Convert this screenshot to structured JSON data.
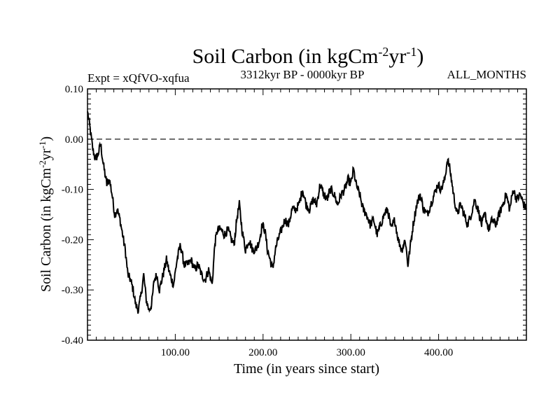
{
  "chart_data": {
    "type": "line",
    "title": {
      "main": "Soil Carbon (in kgCm",
      "exp1": "-2",
      "mid": "yr",
      "exp2": "-1",
      "end": ")"
    },
    "subtitle_left": "Expt = xQfVO-xqfua",
    "subtitle_center": "3312kyr BP - 0000kyr BP",
    "subtitle_right": "ALL_MONTHS",
    "xlabel": "Time (in years since start)",
    "ylabel": {
      "main": "Soil Carbon (in kgCm",
      "exp1": "-2",
      "mid": "yr",
      "exp2": "-1",
      "end": ")"
    },
    "xlim": [
      0,
      500
    ],
    "ylim": [
      -0.4,
      0.1
    ],
    "xticks": [
      100,
      200,
      300,
      400
    ],
    "xtick_labels": [
      "100.00",
      "200.00",
      "300.00",
      "400.00"
    ],
    "yticks": [
      0.1,
      0.0,
      -0.1,
      -0.2,
      -0.3,
      -0.4
    ],
    "ytick_labels": [
      "0.10",
      "0.00",
      "-0.10",
      "-0.20",
      "-0.30",
      "-0.40"
    ],
    "reference_line": {
      "y": 0.0,
      "style": "dashed"
    },
    "series": [
      {
        "name": "Soil Carbon",
        "color": "#000000",
        "points": [
          [
            0,
            0.055
          ],
          [
            3,
            0.02
          ],
          [
            6,
            -0.02
          ],
          [
            9,
            -0.04
          ],
          [
            12,
            -0.03
          ],
          [
            15,
            -0.01
          ],
          [
            18,
            -0.05
          ],
          [
            22,
            -0.09
          ],
          [
            25,
            -0.08
          ],
          [
            28,
            -0.11
          ],
          [
            31,
            -0.15
          ],
          [
            34,
            -0.14
          ],
          [
            37,
            -0.16
          ],
          [
            40,
            -0.19
          ],
          [
            43,
            -0.22
          ],
          [
            46,
            -0.27
          ],
          [
            49,
            -0.28
          ],
          [
            52,
            -0.3
          ],
          [
            55,
            -0.33
          ],
          [
            58,
            -0.34
          ],
          [
            61,
            -0.31
          ],
          [
            64,
            -0.27
          ],
          [
            67,
            -0.32
          ],
          [
            70,
            -0.34
          ],
          [
            73,
            -0.33
          ],
          [
            76,
            -0.28
          ],
          [
            79,
            -0.27
          ],
          [
            82,
            -0.3
          ],
          [
            86,
            -0.27
          ],
          [
            90,
            -0.24
          ],
          [
            94,
            -0.27
          ],
          [
            98,
            -0.29
          ],
          [
            102,
            -0.24
          ],
          [
            106,
            -0.21
          ],
          [
            110,
            -0.25
          ],
          [
            114,
            -0.25
          ],
          [
            118,
            -0.24
          ],
          [
            122,
            -0.26
          ],
          [
            126,
            -0.25
          ],
          [
            130,
            -0.27
          ],
          [
            134,
            -0.28
          ],
          [
            138,
            -0.26
          ],
          [
            142,
            -0.29
          ],
          [
            145,
            -0.21
          ],
          [
            148,
            -0.18
          ],
          [
            152,
            -0.18
          ],
          [
            156,
            -0.19
          ],
          [
            160,
            -0.18
          ],
          [
            164,
            -0.2
          ],
          [
            167,
            -0.21
          ],
          [
            170,
            -0.16
          ],
          [
            173,
            -0.13
          ],
          [
            176,
            -0.18
          ],
          [
            180,
            -0.22
          ],
          [
            184,
            -0.2
          ],
          [
            188,
            -0.22
          ],
          [
            192,
            -0.22
          ],
          [
            196,
            -0.2
          ],
          [
            199,
            -0.17
          ],
          [
            202,
            -0.18
          ],
          [
            205,
            -0.22
          ],
          [
            208,
            -0.24
          ],
          [
            211,
            -0.26
          ],
          [
            214,
            -0.22
          ],
          [
            217,
            -0.2
          ],
          [
            221,
            -0.18
          ],
          [
            225,
            -0.16
          ],
          [
            229,
            -0.17
          ],
          [
            233,
            -0.14
          ],
          [
            237,
            -0.14
          ],
          [
            241,
            -0.13
          ],
          [
            245,
            -0.1
          ],
          [
            249,
            -0.13
          ],
          [
            253,
            -0.14
          ],
          [
            257,
            -0.12
          ],
          [
            261,
            -0.13
          ],
          [
            265,
            -0.09
          ],
          [
            269,
            -0.11
          ],
          [
            273,
            -0.12
          ],
          [
            277,
            -0.1
          ],
          [
            281,
            -0.11
          ],
          [
            285,
            -0.13
          ],
          [
            289,
            -0.11
          ],
          [
            293,
            -0.1
          ],
          [
            297,
            -0.08
          ],
          [
            300,
            -0.09
          ],
          [
            303,
            -0.06
          ],
          [
            306,
            -0.09
          ],
          [
            310,
            -0.11
          ],
          [
            314,
            -0.14
          ],
          [
            318,
            -0.15
          ],
          [
            322,
            -0.17
          ],
          [
            326,
            -0.16
          ],
          [
            330,
            -0.19
          ],
          [
            334,
            -0.17
          ],
          [
            338,
            -0.15
          ],
          [
            342,
            -0.14
          ],
          [
            346,
            -0.18
          ],
          [
            350,
            -0.16
          ],
          [
            354,
            -0.2
          ],
          [
            358,
            -0.22
          ],
          [
            362,
            -0.2
          ],
          [
            365,
            -0.25
          ],
          [
            368,
            -0.21
          ],
          [
            371,
            -0.17
          ],
          [
            375,
            -0.13
          ],
          [
            379,
            -0.11
          ],
          [
            383,
            -0.14
          ],
          [
            387,
            -0.15
          ],
          [
            391,
            -0.13
          ],
          [
            395,
            -0.11
          ],
          [
            399,
            -0.09
          ],
          [
            403,
            -0.1
          ],
          [
            407,
            -0.08
          ],
          [
            410,
            -0.04
          ],
          [
            413,
            -0.06
          ],
          [
            417,
            -0.11
          ],
          [
            421,
            -0.15
          ],
          [
            425,
            -0.13
          ],
          [
            429,
            -0.15
          ],
          [
            433,
            -0.17
          ],
          [
            437,
            -0.15
          ],
          [
            441,
            -0.12
          ],
          [
            445,
            -0.14
          ],
          [
            449,
            -0.17
          ],
          [
            453,
            -0.15
          ],
          [
            457,
            -0.18
          ],
          [
            461,
            -0.16
          ],
          [
            465,
            -0.17
          ],
          [
            469,
            -0.15
          ],
          [
            473,
            -0.13
          ],
          [
            477,
            -0.11
          ],
          [
            481,
            -0.14
          ],
          [
            485,
            -0.1
          ],
          [
            489,
            -0.12
          ],
          [
            493,
            -0.11
          ],
          [
            497,
            -0.13
          ],
          [
            500,
            -0.14
          ]
        ]
      }
    ]
  }
}
